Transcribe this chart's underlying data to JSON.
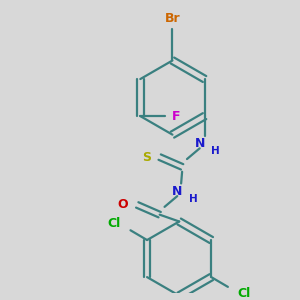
{
  "background_color": "#d8d8d8",
  "bond_color": "#3a8080",
  "atom_colors": {
    "Br": "#cc6600",
    "F": "#cc00cc",
    "N": "#1a1acc",
    "O": "#cc0000",
    "S": "#aaaa00",
    "Cl": "#00aa00"
  },
  "figsize": [
    3.0,
    3.0
  ],
  "dpi": 100
}
